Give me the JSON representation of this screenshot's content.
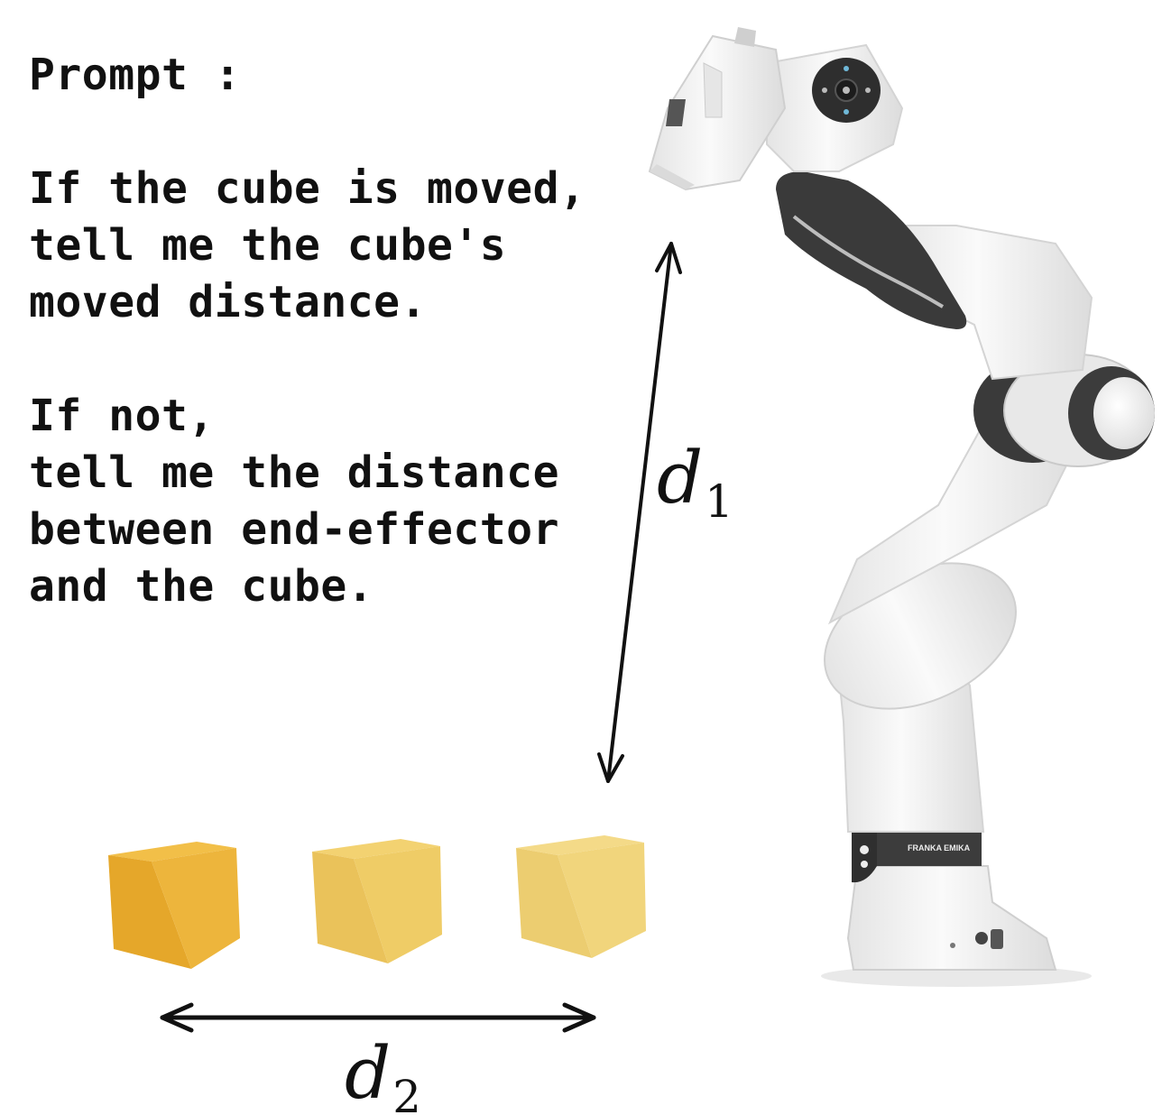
{
  "prompt": {
    "heading": "Prompt :",
    "para1": [
      "If the cube is moved,",
      "tell me the cube's",
      "moved distance."
    ],
    "para2": [
      "If not,",
      "tell me the distance",
      "between end-effector",
      "and the cube."
    ]
  },
  "labels": {
    "d1_var": "d",
    "d1_sub": "1",
    "d2_var": "d",
    "d2_sub": "2"
  },
  "robot": {
    "base_brand": "FRANKA EMIKA"
  },
  "colors": {
    "cube_1": "#E9AE2F",
    "cube_2": "#EDC663",
    "cube_3": "#EFD27E",
    "robot_white": "#F2F2F2",
    "robot_dark": "#3A3A3A",
    "arrow": "#111111"
  }
}
